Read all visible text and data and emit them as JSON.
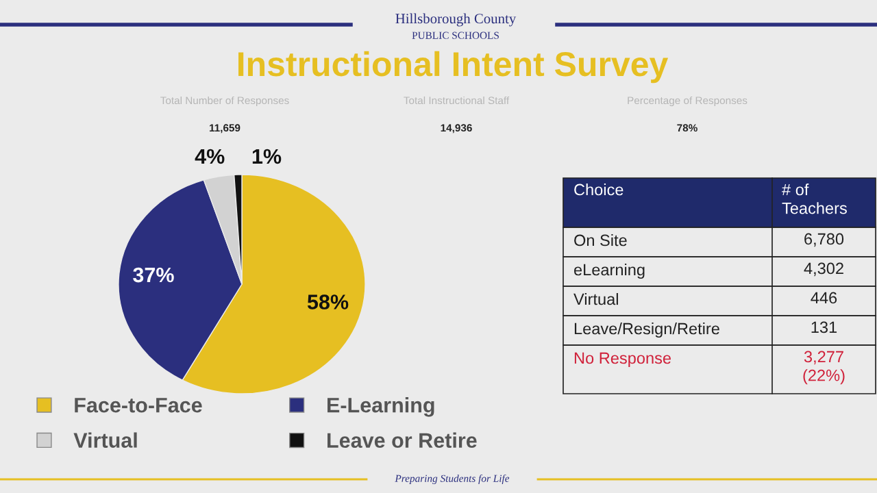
{
  "chart_data": [
    {
      "type": "pie",
      "title": "Instructional Intent Survey",
      "categories": [
        "Face-to-Face",
        "E-Learning",
        "Virtual",
        "Leave or Retire"
      ],
      "values": [
        58,
        37,
        4,
        1
      ],
      "colors": [
        "#e6bf22",
        "#2b2f7e",
        "#d2d2d2",
        "#111111"
      ],
      "value_labels": [
        "58%",
        "37%",
        "4%",
        "1%"
      ],
      "legend": "bottom",
      "annotations": [
        "Hillsborough County",
        "PUBLIC SCHOOLS",
        "Total Number of Responses",
        "11,659",
        "Total Instructional Staff",
        "14,936",
        "Percentage of Responses",
        "78%",
        "Preparing Students for Life"
      ]
    },
    {
      "type": "other",
      "annotations": [
        "Choice",
        "# of\nTeachers"
      ],
      "categories": [
        "On Site",
        "eLearning",
        "Virtual",
        "Leave/Resign/Retire",
        "No Response"
      ],
      "values": [
        6780,
        4302,
        446,
        131,
        3277
      ],
      "value_labels": [
        "6,780",
        "4,302",
        "446",
        "131",
        "3,277\n(22%)"
      ],
      "colors": [
        "#222222",
        "#222222",
        "#222222",
        "#222222",
        "#d0213a"
      ]
    }
  ]
}
